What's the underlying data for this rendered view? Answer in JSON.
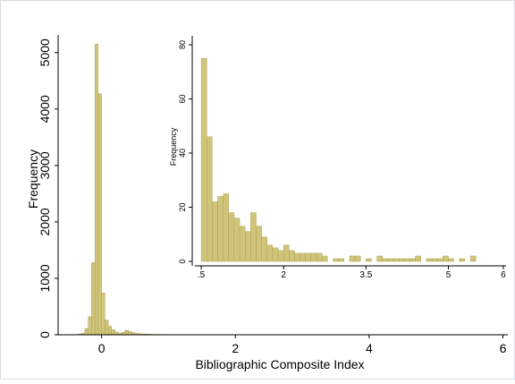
{
  "colors": {
    "bar_fill": "#cfc47a",
    "bar_stroke": "#a69a48",
    "axis": "#000000",
    "frame": "#d9dde3",
    "background": "#ffffff"
  },
  "chart_data": [
    {
      "id": "main",
      "type": "bar",
      "xlabel": "Bibliographic Composite Index",
      "ylabel": "Frequency",
      "xlim": [
        -0.65,
        6.1
      ],
      "ylim": [
        0,
        5250
      ],
      "xticks": [
        0,
        2,
        4,
        6
      ],
      "yticks": [
        0,
        1000,
        2000,
        3000,
        4000,
        5000
      ],
      "bin_width": 0.05,
      "bin_starts": [
        -0.35,
        -0.3,
        -0.25,
        -0.2,
        -0.15,
        -0.1,
        -0.05,
        0.0,
        0.05,
        0.1,
        0.15,
        0.2,
        0.25,
        0.3,
        0.35,
        0.4,
        0.45,
        0.5,
        0.55,
        0.6,
        0.65,
        0.7,
        0.75,
        0.8,
        0.85,
        0.9,
        0.95,
        1.0
      ],
      "values": [
        15,
        25,
        110,
        320,
        1280,
        5150,
        4270,
        740,
        260,
        150,
        90,
        50,
        30,
        45,
        80,
        60,
        35,
        25,
        20,
        15,
        12,
        10,
        8,
        8,
        6,
        6,
        5,
        5
      ]
    },
    {
      "id": "inset",
      "type": "bar",
      "xlabel": "",
      "ylabel": "Frequency",
      "xlim": [
        0.45,
        6.05
      ],
      "ylim": [
        0,
        82
      ],
      "xticks": [
        0.5,
        2,
        3.5,
        5,
        6
      ],
      "xticklabels": [
        ".5",
        "2",
        "3.5",
        "5",
        "6"
      ],
      "yticks": [
        0,
        20,
        40,
        60,
        80
      ],
      "bin_width": 0.1,
      "bin_starts": [
        0.5,
        0.6,
        0.7,
        0.8,
        0.9,
        1.0,
        1.1,
        1.2,
        1.3,
        1.4,
        1.5,
        1.6,
        1.7,
        1.8,
        1.9,
        2.0,
        2.1,
        2.2,
        2.3,
        2.4,
        2.5,
        2.6,
        2.7,
        2.8,
        2.9,
        3.0,
        3.1,
        3.2,
        3.3,
        3.4,
        3.5,
        3.6,
        3.7,
        3.8,
        3.9,
        4.0,
        4.1,
        4.2,
        4.3,
        4.4,
        4.5,
        4.6,
        4.7,
        4.8,
        4.9,
        5.0,
        5.1,
        5.2,
        5.3,
        5.4
      ],
      "values": [
        75,
        46,
        22,
        24,
        25,
        18,
        16,
        13,
        11,
        18,
        13,
        9,
        6,
        5,
        4,
        6,
        4,
        3,
        3,
        3,
        3,
        3,
        2,
        0,
        1,
        1,
        0,
        2,
        2,
        0,
        1,
        0,
        2,
        1,
        1,
        1,
        1,
        1,
        1,
        2,
        0,
        1,
        1,
        1,
        2,
        1,
        0,
        1,
        0,
        2
      ]
    }
  ]
}
